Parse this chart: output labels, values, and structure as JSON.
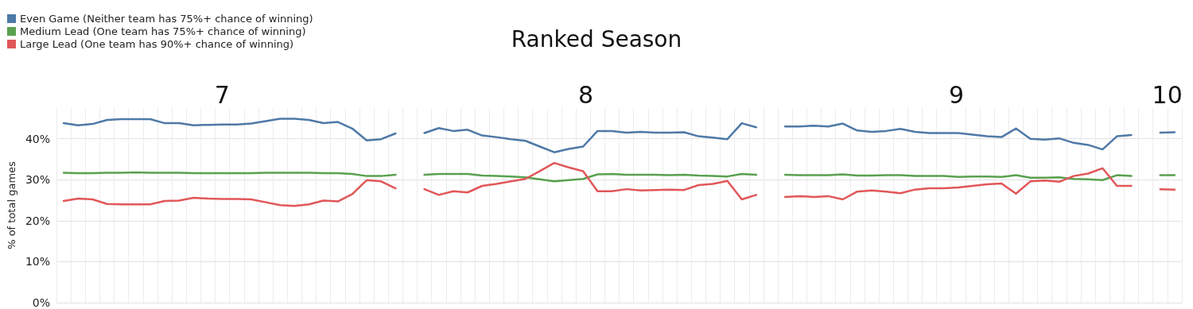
{
  "chart_data": {
    "type": "line",
    "title": "Ranked Season",
    "ylabel": "% of total games",
    "legend": "top left",
    "grid": true,
    "marker": "none",
    "ylim": [
      0,
      47.5
    ],
    "yticks": [
      {
        "value": 0,
        "label": "0%"
      },
      {
        "value": 10,
        "label": "10%"
      },
      {
        "value": 20,
        "label": "20%"
      },
      {
        "value": 30,
        "label": "30%"
      },
      {
        "value": 40,
        "label": "40%"
      }
    ],
    "annotations": [
      "7",
      "8",
      "9",
      "10"
    ],
    "categories": [
      null,
      null,
      null,
      null,
      null,
      null,
      null,
      null,
      null,
      null,
      null,
      null,
      null,
      null,
      null,
      null,
      null,
      null,
      null,
      null,
      null,
      null,
      null,
      null,
      null,
      null,
      null,
      null,
      null,
      null,
      null,
      null,
      null,
      null,
      null,
      null,
      null,
      null,
      null,
      null,
      null,
      null,
      null,
      null,
      null,
      null,
      null,
      null,
      null,
      null,
      null,
      null,
      null,
      null,
      null,
      null,
      null,
      null,
      null,
      null,
      null,
      null,
      null,
      null,
      null,
      null,
      null,
      null,
      null,
      null,
      null,
      null,
      null,
      null,
      null,
      null,
      null,
      null
    ],
    "series": [
      {
        "name": "Even Game (Neither team has 75%+ chance of winning)",
        "color": "#4e79a7",
        "values": [
          43.8,
          43.3,
          43.6,
          44.6,
          44.8,
          44.8,
          44.8,
          43.8,
          43.8,
          43.3,
          43.4,
          43.5,
          43.5,
          43.7,
          44.3,
          44.9,
          44.9,
          44.6,
          43.8,
          44.1,
          42.5,
          39.6,
          39.9,
          41.3,
          null,
          41.4,
          42.6,
          41.9,
          42.2,
          40.8,
          40.4,
          39.9,
          39.5,
          38.1,
          36.7,
          37.5,
          38.1,
          41.9,
          41.9,
          41.5,
          41.7,
          41.5,
          41.5,
          41.6,
          40.6,
          40.3,
          39.9,
          43.8,
          42.8,
          null,
          43.0,
          43.0,
          43.2,
          43.0,
          43.7,
          42.0,
          41.7,
          41.9,
          42.4,
          41.7,
          41.4,
          41.4,
          41.4,
          41.0,
          40.6,
          40.4,
          42.5,
          40.0,
          39.8,
          40.1,
          39.0,
          38.5,
          37.4,
          40.6,
          40.9,
          null,
          41.5,
          41.6
        ]
      },
      {
        "name": "Medium Lead (One team has 75%+ chance of winning)",
        "color": "#59a14f",
        "values": [
          31.7,
          31.6,
          31.6,
          31.7,
          31.7,
          31.8,
          31.7,
          31.7,
          31.7,
          31.6,
          31.6,
          31.6,
          31.6,
          31.6,
          31.7,
          31.7,
          31.7,
          31.7,
          31.6,
          31.6,
          31.4,
          30.9,
          30.9,
          31.2,
          null,
          31.2,
          31.4,
          31.4,
          31.4,
          31.0,
          30.9,
          30.8,
          30.6,
          30.1,
          29.6,
          29.9,
          30.2,
          31.3,
          31.4,
          31.2,
          31.2,
          31.2,
          31.1,
          31.2,
          31.0,
          30.9,
          30.8,
          31.4,
          31.2,
          null,
          31.2,
          31.1,
          31.1,
          31.1,
          31.3,
          31.0,
          31.0,
          31.1,
          31.1,
          30.9,
          30.9,
          30.9,
          30.7,
          30.8,
          30.8,
          30.7,
          31.1,
          30.5,
          30.5,
          30.6,
          30.2,
          30.1,
          29.9,
          31.1,
          30.9,
          null,
          31.1,
          31.1
        ]
      },
      {
        "name": "Large Lead (One team has 90%+ chance of winning)",
        "color": "#e15759",
        "values": [
          24.8,
          25.4,
          25.2,
          24.1,
          24.0,
          24.0,
          24.0,
          24.8,
          24.9,
          25.6,
          25.4,
          25.3,
          25.3,
          25.2,
          24.5,
          23.8,
          23.6,
          24.0,
          24.9,
          24.7,
          26.5,
          29.9,
          29.6,
          27.9,
          null,
          27.7,
          26.3,
          27.2,
          26.9,
          28.5,
          29.0,
          29.6,
          30.2,
          32.1,
          34.1,
          33.0,
          32.1,
          27.2,
          27.2,
          27.7,
          27.4,
          27.5,
          27.6,
          27.5,
          28.7,
          29.0,
          29.7,
          25.2,
          26.3,
          null,
          25.8,
          26.0,
          25.8,
          26.0,
          25.2,
          27.1,
          27.4,
          27.1,
          26.7,
          27.6,
          27.9,
          27.9,
          28.1,
          28.5,
          28.9,
          29.1,
          26.6,
          29.6,
          29.8,
          29.5,
          30.9,
          31.5,
          32.8,
          28.5,
          28.5,
          null,
          27.7,
          27.6
        ]
      }
    ]
  }
}
